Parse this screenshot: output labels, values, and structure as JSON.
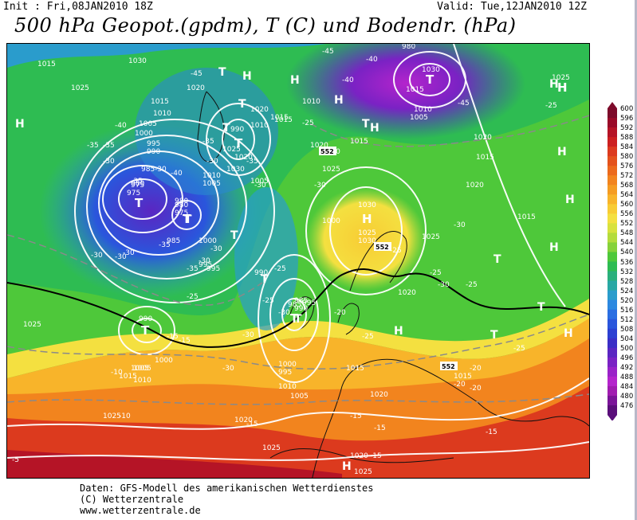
{
  "header": {
    "init": "Init : Fri,08JAN2010 18Z",
    "valid": "Valid: Tue,12JAN2010 12Z",
    "title": "500 hPa Geopot.(gpdm), T (C) und Bodendr. (hPa)"
  },
  "footer": {
    "line1": "Daten: GFS-Modell des amerikanischen Wetterdienstes",
    "line2": "(C) Wetterzentrale",
    "line3": "www.wetterzentrale.de"
  },
  "legend": {
    "levels": [
      "600",
      "596",
      "592",
      "588",
      "584",
      "580",
      "576",
      "572",
      "568",
      "564",
      "560",
      "556",
      "552",
      "548",
      "544",
      "540",
      "536",
      "532",
      "528",
      "524",
      "520",
      "516",
      "512",
      "508",
      "504",
      "500",
      "496",
      "492",
      "488",
      "484",
      "480",
      "476"
    ],
    "colors": [
      "#7d0a2a",
      "#9a0a28",
      "#b51426",
      "#cc2020",
      "#dc3a1e",
      "#e4521c",
      "#ec6a1c",
      "#f2841e",
      "#f59c22",
      "#f8b42a",
      "#f8cc34",
      "#f4e040",
      "#d8e23e",
      "#b4dc3c",
      "#86d23a",
      "#4ec83a",
      "#2ebc52",
      "#2ab07c",
      "#28a8a4",
      "#2a9ccc",
      "#2c88e0",
      "#2a6ee2",
      "#2a56dc",
      "#2c40d2",
      "#3a2ec6",
      "#5a26c2",
      "#7a22c4",
      "#9a22c8",
      "#b424cc",
      "#a01cb0",
      "#7a1498",
      "#5a0e7a"
    ]
  },
  "map": {
    "pressure_centers": [
      {
        "symbol": "T",
        "label": "975"
      },
      {
        "symbol": "T",
        "label": "980"
      },
      {
        "symbol": "T",
        "label": "990"
      },
      {
        "symbol": "T",
        "label": "985"
      },
      {
        "symbol": "T",
        "label": "1030"
      },
      {
        "symbol": "T",
        "label": "990"
      },
      {
        "symbol": "H",
        "label": "1030"
      },
      {
        "symbol": "H",
        "label": "1025"
      }
    ],
    "symbols": [
      "H",
      "H",
      "H",
      "H",
      "H",
      "H",
      "H",
      "H",
      "H",
      "H",
      "H",
      "H",
      "H",
      "T",
      "T",
      "T",
      "T",
      "T",
      "T",
      "T",
      "T",
      "T",
      "T",
      "T"
    ],
    "isobar_labels": [
      "1015",
      "1030",
      "1025",
      "1020",
      "1015",
      "1010",
      "1005",
      "1000",
      "995",
      "990",
      "985",
      "980",
      "975",
      "980",
      "975",
      "985",
      "995",
      "990",
      "1010",
      "1005",
      "1025",
      "1020",
      "1030",
      "1015",
      "1010",
      "1005",
      "995",
      "1000",
      "1020",
      "1015",
      "1010",
      "1015",
      "1020",
      "1025",
      "1000",
      "995",
      "990",
      "985",
      "980",
      "1005",
      "1010",
      "1015",
      "1020",
      "1025",
      "1030",
      "1025",
      "1015",
      "1020",
      "1020",
      "1015",
      "1025",
      "1020",
      "1005",
      "995",
      "1000",
      "1015",
      "1010",
      "1005",
      "1020",
      "1020",
      "1025",
      "1025",
      "1025",
      "1020",
      "1015",
      "1000",
      "1005",
      "1010",
      "1015"
    ],
    "temperature_labels": [
      "-45",
      "-40",
      "-45",
      "-40",
      "-45",
      "-35",
      "-40",
      "-35",
      "-30",
      "-35",
      "-40",
      "-30",
      "-35",
      "-30",
      "-30",
      "-30",
      "-30",
      "-35",
      "-30",
      "-35",
      "-25",
      "-30",
      "-25",
      "-30",
      "-25",
      "-25",
      "-30",
      "-25",
      "-30",
      "-30",
      "-25",
      "-30",
      "-25",
      "-35",
      "-30",
      "-30",
      "-25",
      "-20",
      "-15",
      "-15",
      "-10",
      "-10",
      "-15",
      "-15",
      "-20",
      "-25",
      "-20",
      "-15",
      "-25",
      "-20",
      "-15",
      "-15",
      "-5"
    ],
    "thickness_labels": [
      "552",
      "552",
      "552"
    ]
  }
}
